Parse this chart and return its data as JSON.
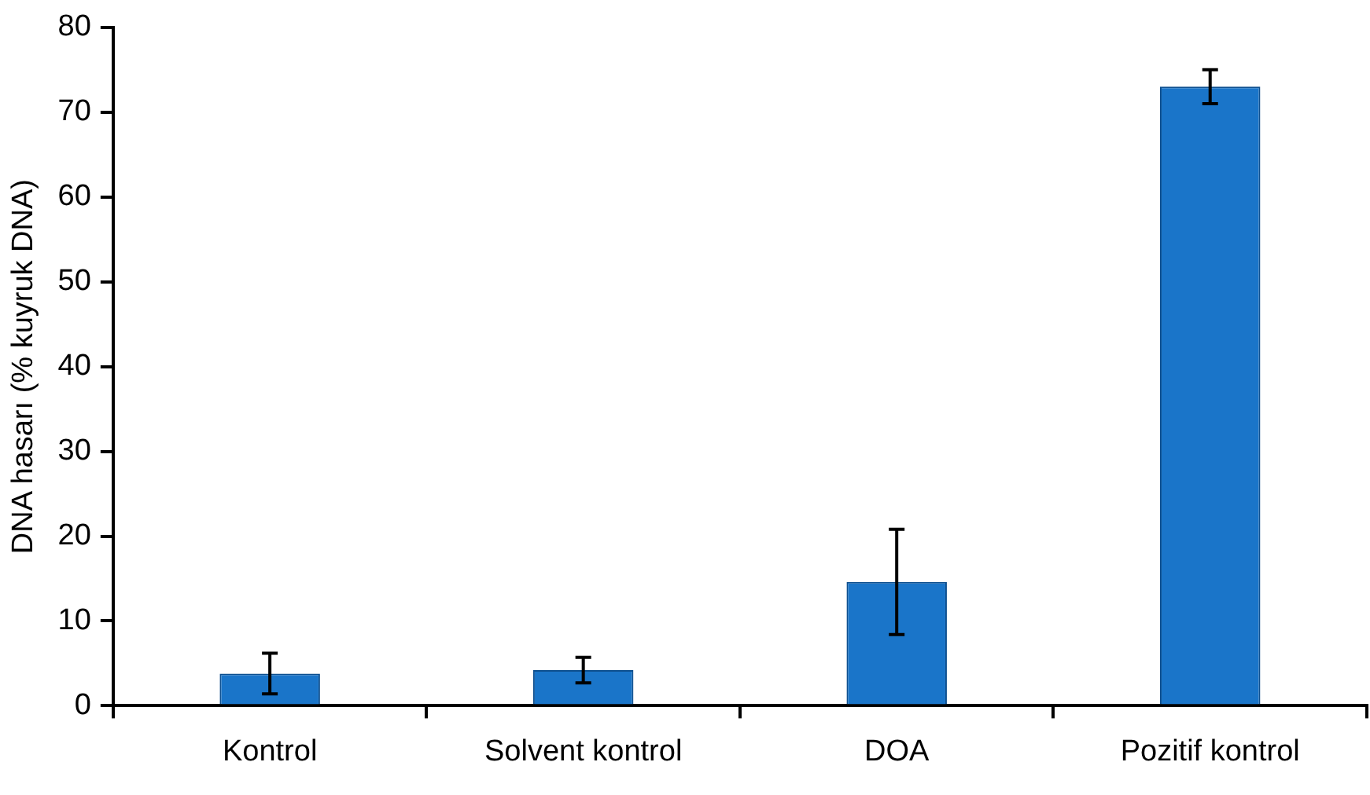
{
  "chart_data": {
    "type": "bar",
    "ylabel": "DNA hasarı (% kuyruk DNA)",
    "categories": [
      "Kontrol",
      "Solvent kontrol",
      "DOA",
      "Pozitif kontrol"
    ],
    "values": [
      3.8,
      4.2,
      14.6,
      73
    ],
    "errors": [
      2.4,
      1.5,
      6.2,
      2
    ],
    "color": "#1a75c9",
    "ylim": [
      0,
      80
    ],
    "yticks": [
      0,
      10,
      20,
      30,
      40,
      50,
      60,
      70,
      80
    ],
    "grid": false,
    "legend": false
  }
}
